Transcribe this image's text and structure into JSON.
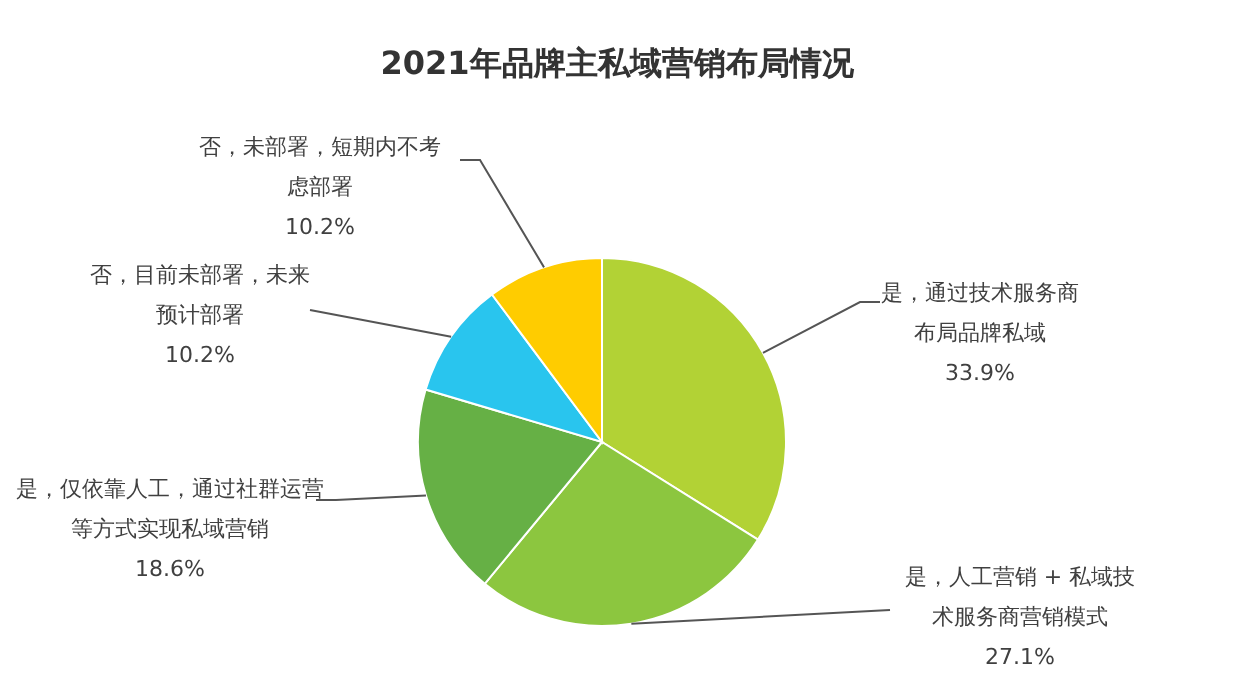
{
  "chart_data": {
    "type": "pie",
    "title": "2021年品牌主私域营销布局情况",
    "categories": [
      "是，通过技术服务商布局品牌私域",
      "是，人工营销 + 私域技术服务商营销模式",
      "是，仅依靠人工，通过社群运营等方式实现私域营销",
      "否，目前未部署，未来预计部署",
      "否，未部署，短期内不考虑部署"
    ],
    "values": [
      33.9,
      27.1,
      18.6,
      10.2,
      10.2
    ],
    "value_labels": [
      "33.9%",
      "27.1%",
      "18.6%",
      "10.2%",
      "10.2%"
    ],
    "colors": [
      "#b2d235",
      "#8cc63f",
      "#66b045",
      "#29c5ee",
      "#ffcc00"
    ],
    "legend": false
  }
}
